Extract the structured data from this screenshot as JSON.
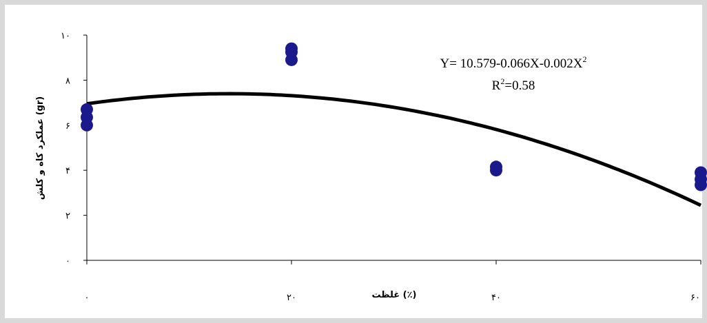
{
  "chart_data": {
    "type": "scatter",
    "xlabel": "غلظت (٪)",
    "ylabel": "عملکرد کاه و کلش (gr)",
    "xlim": [
      0,
      60
    ],
    "ylim": [
      0,
      10
    ],
    "x_ticks": [
      {
        "value": 0,
        "label": "۰"
      },
      {
        "value": 20,
        "label": "۲۰"
      },
      {
        "value": 40,
        "label": "۴۰"
      },
      {
        "value": 60,
        "label": "۶۰"
      }
    ],
    "y_ticks": [
      {
        "value": 0,
        "label": "۰"
      },
      {
        "value": 2,
        "label": "۲"
      },
      {
        "value": 4,
        "label": "۴"
      },
      {
        "value": 6,
        "label": "۶"
      },
      {
        "value": 8,
        "label": "۸"
      },
      {
        "value": 10,
        "label": "۱۰"
      }
    ],
    "points": [
      {
        "x": 0,
        "y": 6.0
      },
      {
        "x": 0,
        "y": 6.35
      },
      {
        "x": 0,
        "y": 6.7
      },
      {
        "x": 20,
        "y": 8.9
      },
      {
        "x": 20,
        "y": 9.25
      },
      {
        "x": 20,
        "y": 9.4
      },
      {
        "x": 40,
        "y": 4.0
      },
      {
        "x": 40,
        "y": 4.15
      },
      {
        "x": 60,
        "y": 3.35
      },
      {
        "x": 60,
        "y": 3.6
      },
      {
        "x": 60,
        "y": 3.9
      }
    ],
    "trendline": {
      "coefficients": [
        10.579,
        -0.066,
        -0.002
      ],
      "render_coefficients": [
        6.95,
        0.0647,
        -0.00233
      ]
    },
    "equation": {
      "main": "Y= 10.579-0.066X-0.002X",
      "sup": "2"
    },
    "r_squared": {
      "prefix": "R",
      "sup": "2",
      "suffix": "=0.58"
    },
    "colors": {
      "marker": "#1a1a8c",
      "line": "#000000"
    }
  }
}
